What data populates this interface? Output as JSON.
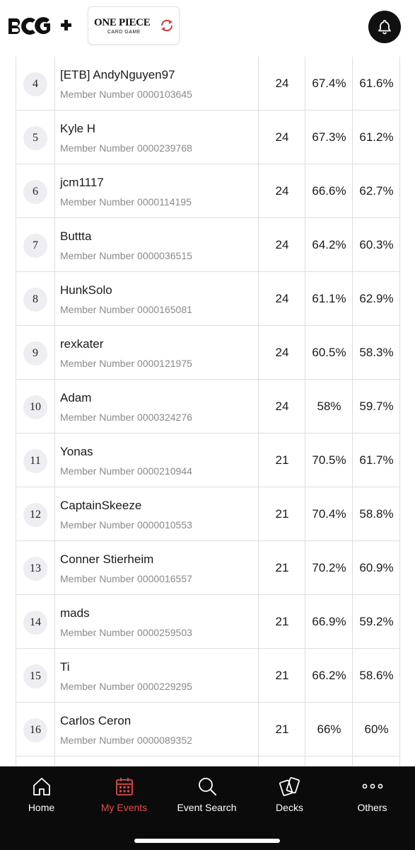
{
  "brand": {
    "app_logo_text": "BCG+"
  },
  "game_logo": {
    "title": "ONE PIECE",
    "subtitle": "CARD GAME"
  },
  "member_label": "Member Number",
  "rows": [
    {
      "rank": "4",
      "name": "[ETB] AndyNguyen97",
      "member_number": "0000103645",
      "points": "24",
      "omw": "67.4%",
      "gw": "61.6%"
    },
    {
      "rank": "5",
      "name": "Kyle H",
      "member_number": "0000239768",
      "points": "24",
      "omw": "67.3%",
      "gw": "61.2%"
    },
    {
      "rank": "6",
      "name": "jcm1117",
      "member_number": "0000114195",
      "points": "24",
      "omw": "66.6%",
      "gw": "62.7%"
    },
    {
      "rank": "7",
      "name": "Buttta",
      "member_number": "0000036515",
      "points": "24",
      "omw": "64.2%",
      "gw": "60.3%"
    },
    {
      "rank": "8",
      "name": "HunkSolo",
      "member_number": "0000165081",
      "points": "24",
      "omw": "61.1%",
      "gw": "62.9%"
    },
    {
      "rank": "9",
      "name": "rexkater",
      "member_number": "0000121975",
      "points": "24",
      "omw": "60.5%",
      "gw": "58.3%"
    },
    {
      "rank": "10",
      "name": "Adam",
      "member_number": "0000324276",
      "points": "24",
      "omw": "58%",
      "gw": "59.7%"
    },
    {
      "rank": "11",
      "name": "Yonas",
      "member_number": "0000210944",
      "points": "21",
      "omw": "70.5%",
      "gw": "61.7%"
    },
    {
      "rank": "12",
      "name": "CaptainSkeeze",
      "member_number": "0000010553",
      "points": "21",
      "omw": "70.4%",
      "gw": "58.8%"
    },
    {
      "rank": "13",
      "name": "Conner Stierheim",
      "member_number": "0000016557",
      "points": "21",
      "omw": "70.2%",
      "gw": "60.9%"
    },
    {
      "rank": "14",
      "name": "mads",
      "member_number": "0000259503",
      "points": "21",
      "omw": "66.9%",
      "gw": "59.2%"
    },
    {
      "rank": "15",
      "name": "Ti",
      "member_number": "0000229295",
      "points": "21",
      "omw": "66.2%",
      "gw": "58.6%"
    },
    {
      "rank": "16",
      "name": "Carlos Ceron",
      "member_number": "0000089352",
      "points": "21",
      "omw": "66%",
      "gw": "60%"
    }
  ],
  "nav": {
    "items": [
      {
        "id": "home",
        "label": "Home",
        "icon": "home-icon",
        "active": false
      },
      {
        "id": "events",
        "label": "My Events",
        "icon": "calendar-icon",
        "active": true
      },
      {
        "id": "search",
        "label": "Event Search",
        "icon": "search-icon",
        "active": false
      },
      {
        "id": "decks",
        "label": "Decks",
        "icon": "cards-icon",
        "active": false
      },
      {
        "id": "others",
        "label": "Others",
        "icon": "more-icon",
        "active": false
      }
    ]
  },
  "colors": {
    "accent": "#e04b4b",
    "nav_bg": "#0b0b0b",
    "rank_bg": "#eeeef2",
    "border": "#dedede",
    "muted_text": "#8a8a8a"
  }
}
